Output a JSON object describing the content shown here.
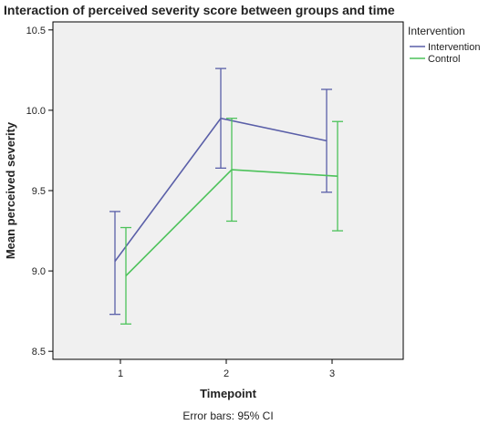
{
  "chart_data": {
    "type": "line",
    "title": "Interaction of perceived severity score between groups and time",
    "xlabel": "Timepoint",
    "ylabel": "Mean perceived severity",
    "categories": [
      "1",
      "2",
      "3"
    ],
    "ylim": [
      8.45,
      10.55
    ],
    "yticks": [
      "8.5",
      "9.0",
      "9.5",
      "10.0",
      "10.5"
    ],
    "grid": false,
    "legend_title": "Intervention",
    "legend_position": "top-right",
    "note": "Error bars: 95% CI",
    "plot_background": "#f0f0f0",
    "series": [
      {
        "name": "Intervention",
        "color": "#5a5fa8",
        "values": [
          9.06,
          9.95,
          9.81
        ],
        "ci_low": [
          8.73,
          9.64,
          9.49
        ],
        "ci_high": [
          9.37,
          10.26,
          10.13
        ]
      },
      {
        "name": "Control",
        "color": "#4cc25a",
        "values": [
          8.97,
          9.63,
          9.59
        ],
        "ci_low": [
          8.67,
          9.31,
          9.25
        ],
        "ci_high": [
          9.27,
          9.95,
          9.93
        ]
      }
    ]
  }
}
